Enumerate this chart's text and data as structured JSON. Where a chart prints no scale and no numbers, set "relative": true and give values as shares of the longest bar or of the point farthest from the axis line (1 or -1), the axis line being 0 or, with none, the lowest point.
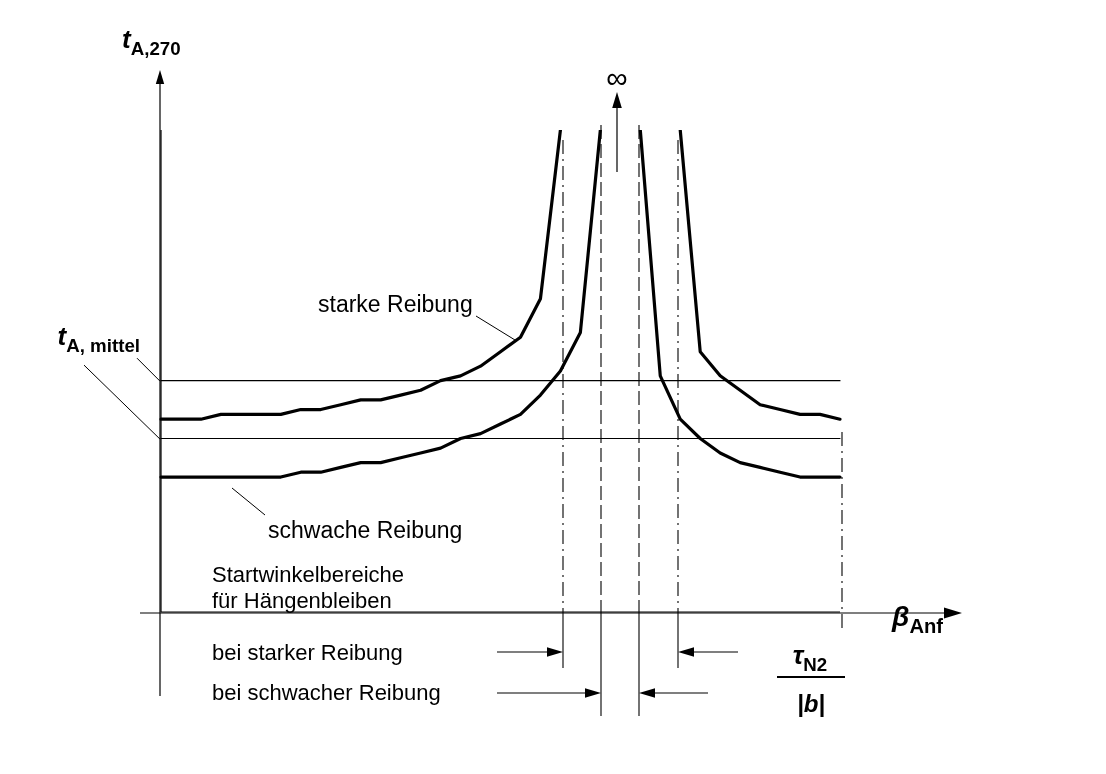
{
  "chart_data": {
    "type": "line",
    "relative": true,
    "marker": "none",
    "ylabel": "t$_{A,270}$",
    "xlabel": "β$_{Anf}$",
    "categories": [
      null,
      null,
      null,
      null,
      null,
      null,
      null,
      null,
      null,
      null,
      null,
      null,
      null,
      null,
      null,
      null,
      null,
      null,
      null,
      null,
      null,
      null,
      null,
      null,
      null,
      null,
      null,
      null,
      null,
      null,
      null,
      null,
      null,
      null,
      null
    ],
    "series": [
      {
        "name": "starke Reibung",
        "color": "#000000",
        "values": [
          0.4,
          0.4,
          0.4,
          0.41,
          0.41,
          0.41,
          0.41,
          0.42,
          0.42,
          0.43,
          0.44,
          0.44,
          0.45,
          0.46,
          0.48,
          0.49,
          0.51,
          0.54,
          0.57,
          0.65,
          1,
          null,
          null,
          null,
          null,
          null,
          1,
          0.54,
          0.49,
          0.46,
          0.43,
          0.42,
          0.41,
          0.41,
          0.4
        ]
      },
      {
        "name": "schwache Reibung",
        "color": "#000000",
        "values": [
          0.28,
          0.28,
          0.28,
          0.28,
          0.28,
          0.28,
          0.28,
          0.29,
          0.29,
          0.3,
          0.31,
          0.31,
          0.32,
          0.33,
          0.34,
          0.36,
          0.37,
          0.39,
          0.41,
          0.45,
          0.5,
          0.58,
          1,
          null,
          1,
          0.49,
          0.4,
          0.36,
          0.33,
          0.31,
          0.3,
          0.29,
          0.28,
          0.28,
          0.28
        ]
      },
      {
        "name": "t$_{A, mittel}$",
        "color": "#000000",
        "values": [
          0.48,
          0.48,
          0.48,
          0.48,
          0.48,
          0.48,
          0.48,
          0.48,
          0.48,
          0.48,
          0.48,
          0.48,
          0.48,
          0.48,
          0.48,
          0.48,
          0.48,
          0.48,
          0.48,
          0.48,
          0.48,
          0.48,
          0.48,
          0.48,
          0.48,
          0.48,
          0.48,
          0.48,
          0.48,
          0.48,
          0.48,
          0.48,
          0.48,
          0.48,
          0.48
        ]
      },
      {
        "color": "#000000",
        "values": [
          0.36,
          0.36,
          0.36,
          0.36,
          0.36,
          0.36,
          0.36,
          0.36,
          0.36,
          0.36,
          0.36,
          0.36,
          0.36,
          0.36,
          0.36,
          0.36,
          0.36,
          0.36,
          0.36,
          0.36,
          0.36,
          0.36,
          0.36,
          0.36,
          0.36,
          0.36,
          0.36,
          0.36,
          0.36,
          0.36,
          0.36,
          0.36,
          0.36,
          0.36,
          0.36
        ]
      }
    ],
    "annotations": [
      "∞",
      "Startwinkelbereiche\nfür Hängenbleiben",
      "bei starker Reibung",
      "bei schwacher Reibung",
      "τ$_{N2}$",
      "|b|"
    ]
  }
}
